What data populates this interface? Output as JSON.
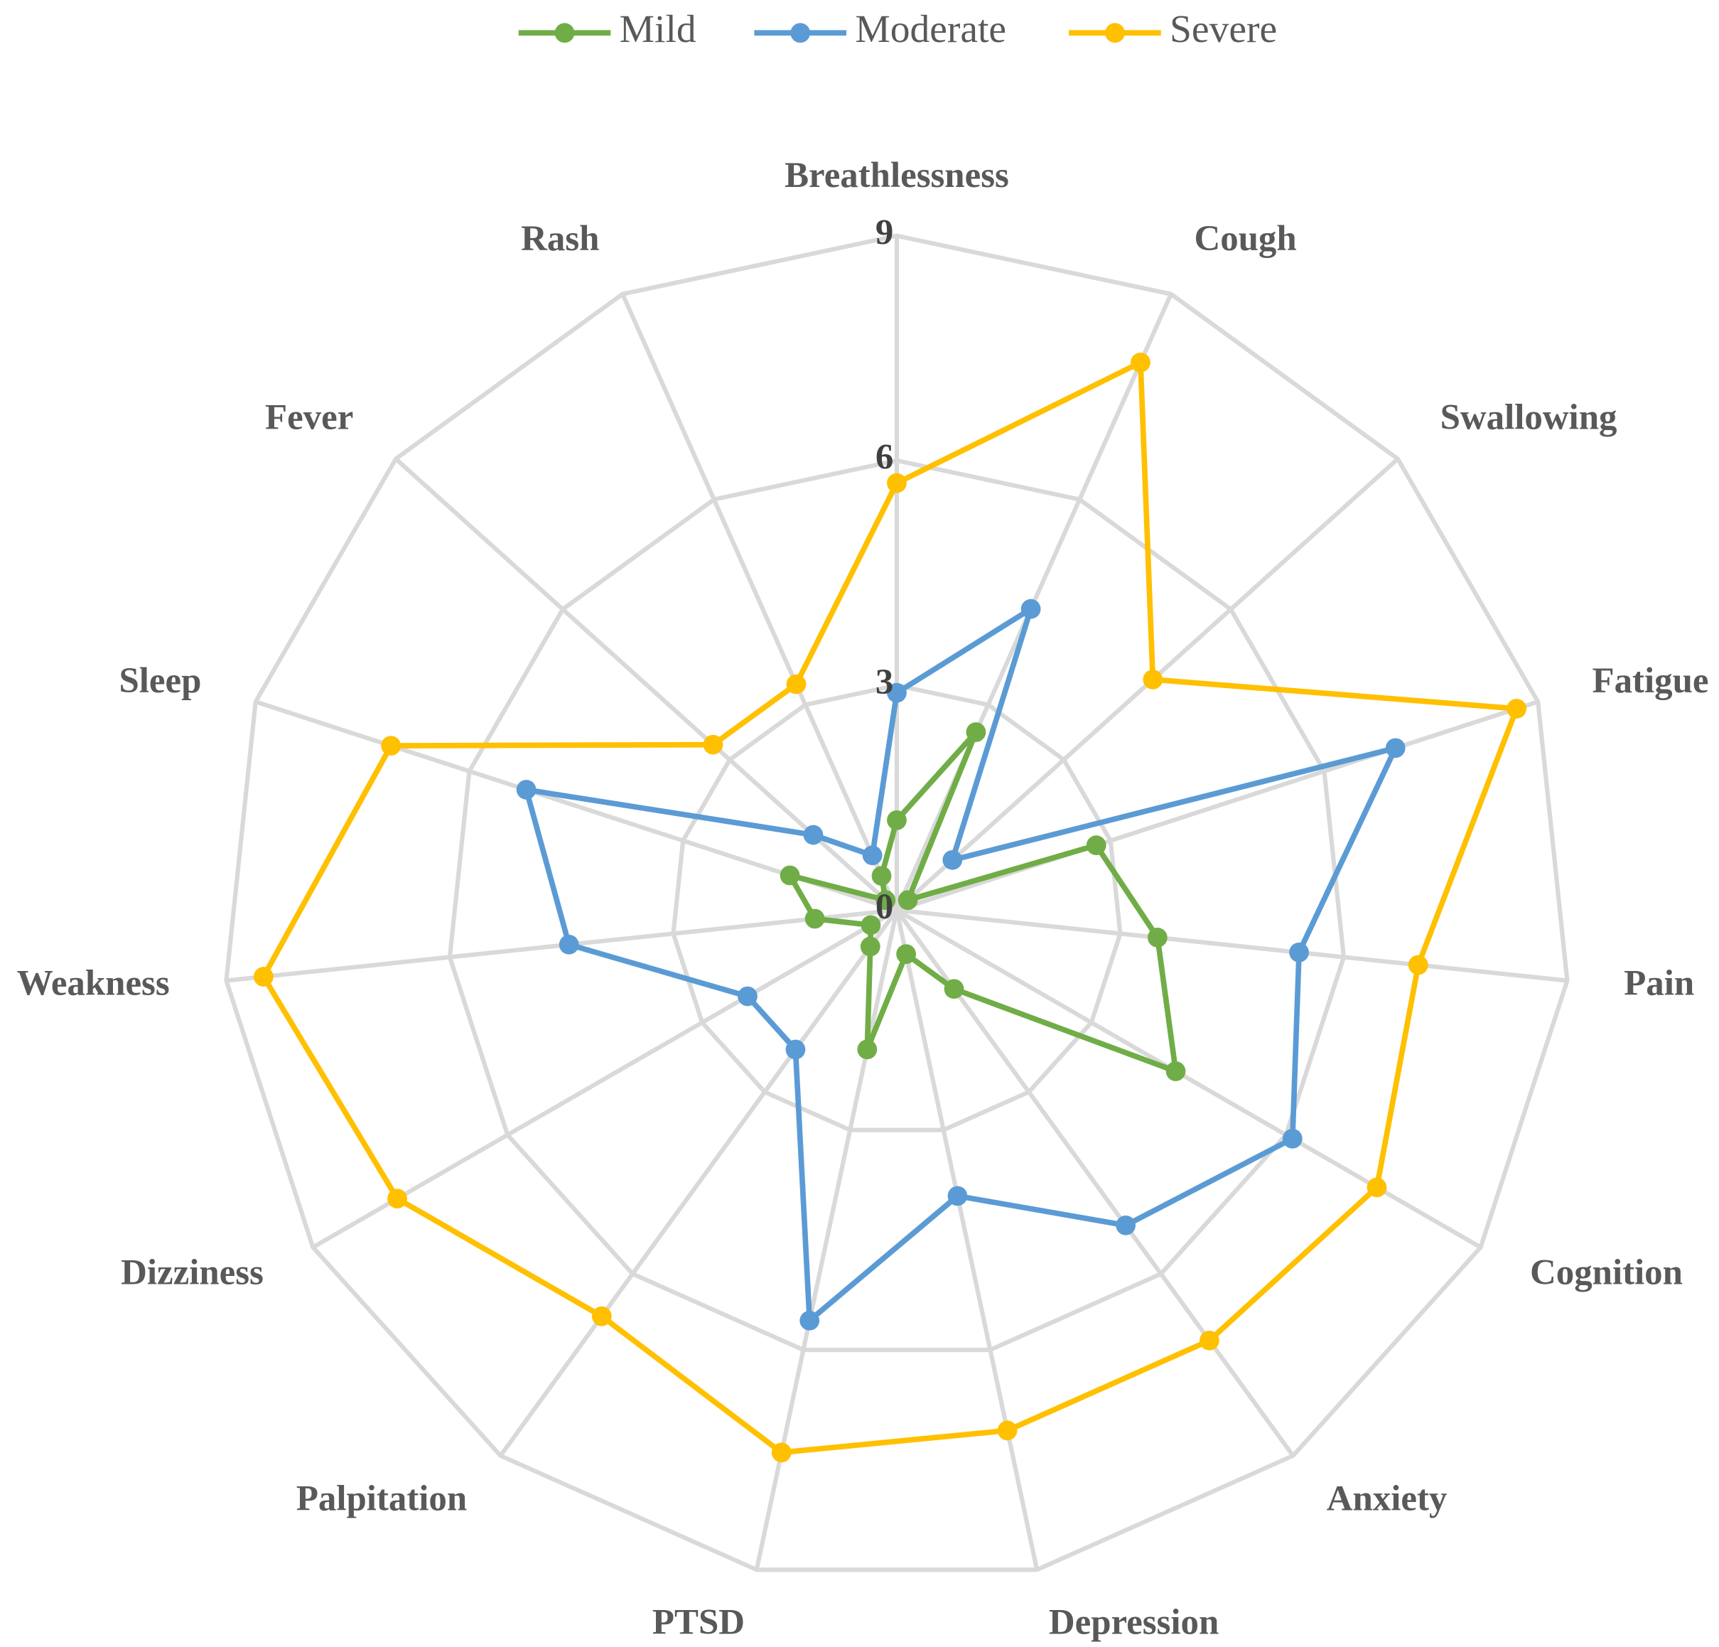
{
  "chart_data": {
    "type": "radar",
    "categories": [
      "Breathlessness",
      "Cough",
      "Swallowing",
      "Fatigue",
      "Pain",
      "Cognition",
      "Anxiety",
      "Depression",
      "PTSD",
      "Palpitation",
      "Dizziness",
      "Weakness",
      "Sleep",
      "Fever",
      "Rash"
    ],
    "series": [
      {
        "name": "Mild",
        "color": "#70ad47",
        "values": [
          1.2,
          2.6,
          0.2,
          2.8,
          3.5,
          4.3,
          1.3,
          0.6,
          1.9,
          0.6,
          0.4,
          1.1,
          1.5,
          0.2,
          0.5
        ]
      },
      {
        "name": "Moderate",
        "color": "#5b9bd5",
        "values": [
          2.9,
          4.4,
          1.0,
          7.0,
          5.4,
          6.1,
          5.2,
          3.9,
          5.6,
          2.3,
          2.3,
          4.4,
          5.2,
          1.5,
          0.8
        ]
      },
      {
        "name": "Severe",
        "color": "#ffc000",
        "values": [
          5.7,
          8.0,
          4.6,
          8.7,
          7.0,
          7.4,
          7.1,
          7.1,
          7.4,
          6.7,
          7.7,
          8.5,
          7.1,
          3.3,
          3.3
        ]
      }
    ],
    "ylim": [
      0,
      9
    ],
    "yticks": [
      0,
      3,
      6,
      9
    ],
    "grid": true,
    "legend": "top"
  }
}
